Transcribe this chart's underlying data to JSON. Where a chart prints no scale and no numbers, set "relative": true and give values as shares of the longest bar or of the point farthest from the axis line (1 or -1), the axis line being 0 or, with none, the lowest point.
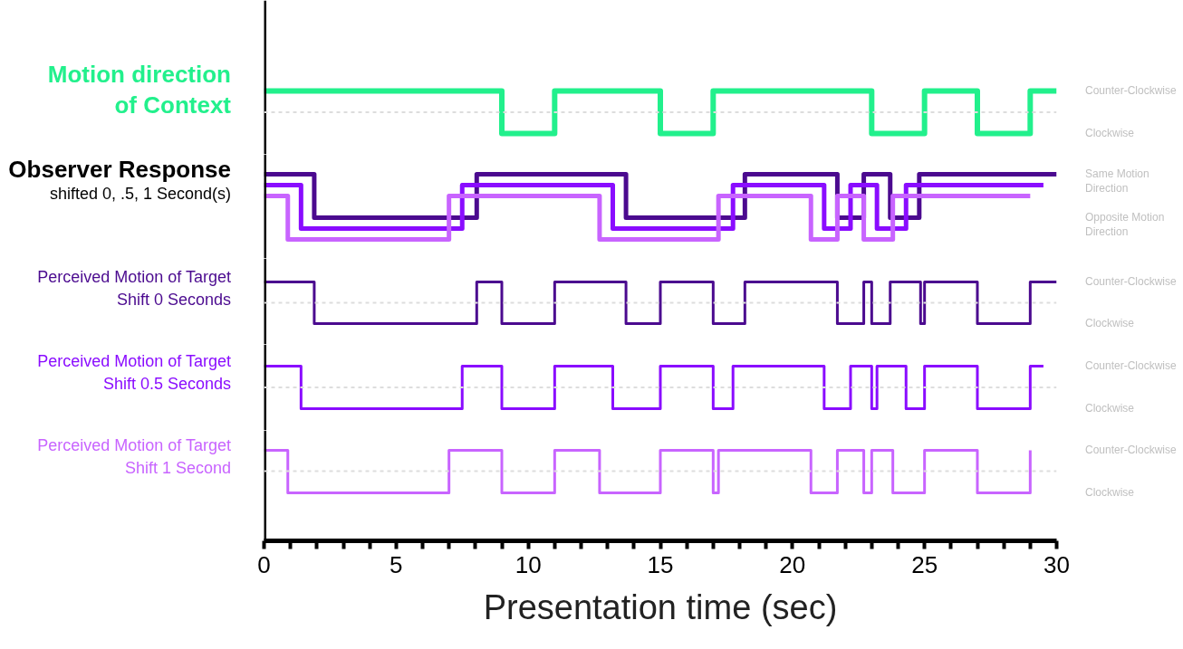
{
  "chart_data": [
    {
      "type": "step",
      "title": "Motion direction\nof Context",
      "relative": true,
      "xlim": [
        0,
        30
      ],
      "tick_labels": false,
      "ref_lines": [
        {
          "axis": "y",
          "value": 0.5,
          "label": null,
          "color": "#dddddd",
          "line_style": "dashed"
        }
      ],
      "annotations": [
        "Counter-Clockwise",
        "Clockwise"
      ],
      "series": [
        {
          "color": "#22f08c",
          "x": [
            0,
            9,
            11,
            15,
            17,
            23,
            25,
            27,
            29,
            30
          ],
          "values": [
            1,
            0,
            1,
            0,
            1,
            0,
            1,
            0,
            1,
            1
          ]
        }
      ]
    },
    {
      "type": "step",
      "title": "Observer Response",
      "subtitle": "shifted 0, .5, 1 Second(s)",
      "relative": true,
      "xlim": [
        0,
        30
      ],
      "tick_labels": false,
      "annotations": [
        "Same Motion Direction",
        "Opposite Motion Direction"
      ],
      "series": [
        {
          "color": "#4b0a8f",
          "x": [
            0,
            1.9,
            8.05,
            13.7,
            18.2,
            21.7,
            22.7,
            23.7,
            24.8,
            30
          ],
          "values": [
            1,
            0.333,
            1,
            0.333,
            1,
            0.333,
            1,
            0.333,
            1,
            1
          ]
        },
        {
          "color": "#8a0cff",
          "x": [
            0,
            1.4,
            7.5,
            13.2,
            17.75,
            21.2,
            22.2,
            23.2,
            24.3,
            29.5
          ],
          "values": [
            0.833,
            0.167,
            0.833,
            0.167,
            0.833,
            0.167,
            0.833,
            0.167,
            0.833,
            0.833
          ]
        },
        {
          "color": "#c864ff",
          "x": [
            0,
            0.9,
            7,
            12.7,
            17.2,
            20.7,
            21.7,
            22.7,
            23.8,
            29
          ],
          "values": [
            0.667,
            0,
            0.667,
            0,
            0.667,
            0,
            0.667,
            0,
            0.667,
            0.667
          ]
        }
      ]
    },
    {
      "type": "step",
      "title": "Perceived Motion of Target",
      "subtitle": "Shift 0 Seconds",
      "relative": true,
      "xlim": [
        0,
        30
      ],
      "tick_labels": false,
      "ref_lines": [
        {
          "axis": "y",
          "value": 0.5,
          "label": null,
          "color": "#dddddd",
          "line_style": "dashed"
        }
      ],
      "annotations": [
        "Counter-Clockwise",
        "Clockwise"
      ],
      "series": [
        {
          "color": "#4b0a8f",
          "x": [
            0,
            1.9,
            8.05,
            9,
            11,
            13.7,
            15,
            17,
            18.2,
            21.7,
            22.7,
            23,
            23.7,
            24.85,
            25,
            27,
            29,
            30
          ],
          "values": [
            1,
            0,
            1,
            0,
            1,
            0,
            1,
            0,
            1,
            0,
            1,
            0,
            1,
            0,
            1,
            0,
            1,
            1
          ]
        }
      ]
    },
    {
      "type": "step",
      "title": "Perceived Motion of Target",
      "subtitle": "Shift 0.5 Seconds",
      "relative": true,
      "xlim": [
        0,
        30
      ],
      "tick_labels": false,
      "ref_lines": [
        {
          "axis": "y",
          "value": 0.5,
          "label": null,
          "color": "#dddddd",
          "line_style": "dashed"
        }
      ],
      "annotations": [
        "Counter-Clockwise",
        "Clockwise"
      ],
      "series": [
        {
          "color": "#8a0cff",
          "x": [
            0,
            1.4,
            7.5,
            9,
            11,
            13.2,
            15,
            17,
            17.75,
            21.2,
            22.2,
            23,
            23.2,
            24.3,
            25,
            27,
            29,
            29.5
          ],
          "values": [
            1,
            0,
            1,
            0,
            1,
            0,
            1,
            0,
            1,
            0,
            1,
            0,
            1,
            0,
            1,
            0,
            1,
            1
          ]
        }
      ]
    },
    {
      "type": "step",
      "title": "Perceived Motion of Target",
      "subtitle": "Shift 1 Second",
      "xlabel": "Presentation time (sec)",
      "relative": true,
      "xlim": [
        0,
        30
      ],
      "tick_labels": "x",
      "xticks": [
        0,
        {
          "value": 1,
          "label": null
        },
        {
          "value": 2,
          "label": null
        },
        {
          "value": 3,
          "label": null
        },
        {
          "value": 4,
          "label": null
        },
        5,
        {
          "value": 6,
          "label": null
        },
        {
          "value": 7,
          "label": null
        },
        {
          "value": 8,
          "label": null
        },
        {
          "value": 9,
          "label": null
        },
        10,
        {
          "value": 11,
          "label": null
        },
        {
          "value": 12,
          "label": null
        },
        {
          "value": 13,
          "label": null
        },
        {
          "value": 14,
          "label": null
        },
        15,
        {
          "value": 16,
          "label": null
        },
        {
          "value": 17,
          "label": null
        },
        {
          "value": 18,
          "label": null
        },
        {
          "value": 19,
          "label": null
        },
        20,
        {
          "value": 21,
          "label": null
        },
        {
          "value": 22,
          "label": null
        },
        {
          "value": 23,
          "label": null
        },
        {
          "value": 24,
          "label": null
        },
        25,
        {
          "value": 26,
          "label": null
        },
        {
          "value": 27,
          "label": null
        },
        {
          "value": 28,
          "label": null
        },
        {
          "value": 29,
          "label": null
        },
        30
      ],
      "ref_lines": [
        {
          "axis": "y",
          "value": 0.77,
          "label": null,
          "color": "#dddddd",
          "line_style": "dashed"
        }
      ],
      "annotations": [
        "Counter-Clockwise",
        "Clockwise"
      ],
      "series": [
        {
          "color": "#c864ff",
          "x": [
            0,
            0.9,
            7,
            9,
            11,
            12.7,
            15,
            17,
            17.2,
            20.7,
            21.7,
            22.7,
            23,
            23.8,
            25,
            27,
            29
          ],
          "values": [
            1,
            0.53,
            1,
            0.53,
            1,
            0.53,
            1,
            0.53,
            1,
            0.53,
            1,
            0.53,
            1,
            0.53,
            1,
            0.53,
            1
          ]
        }
      ]
    }
  ]
}
